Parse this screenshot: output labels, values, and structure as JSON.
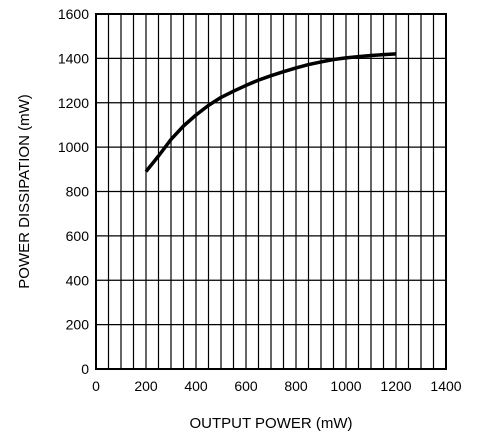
{
  "colors": {
    "background": "#ffffff",
    "ink": "#000000"
  },
  "chart_data": {
    "type": "line",
    "title": "",
    "xlabel": "OUTPUT POWER (mW)",
    "ylabel": "POWER DISSIPATION (mW)",
    "xlim": [
      0,
      1400
    ],
    "ylim": [
      0,
      1600
    ],
    "x_ticks": [
      "0",
      "200",
      "400",
      "600",
      "800",
      "1000",
      "1200",
      "1400"
    ],
    "y_ticks": [
      "0",
      "200",
      "400",
      "600",
      "800",
      "1000",
      "1200",
      "1400",
      "1600"
    ],
    "grid": true,
    "x_minor_step": 50,
    "y_major_step": 200,
    "series": [
      {
        "x": [
          200,
          250,
          300,
          350,
          400,
          450,
          500,
          550,
          600,
          650,
          700,
          750,
          800,
          850,
          900,
          950,
          1000,
          1050,
          1100,
          1150,
          1200
        ],
        "values": [
          890,
          960,
          1035,
          1095,
          1145,
          1188,
          1224,
          1252,
          1278,
          1302,
          1322,
          1340,
          1357,
          1372,
          1384,
          1395,
          1402,
          1408,
          1413,
          1417,
          1420
        ]
      }
    ]
  }
}
